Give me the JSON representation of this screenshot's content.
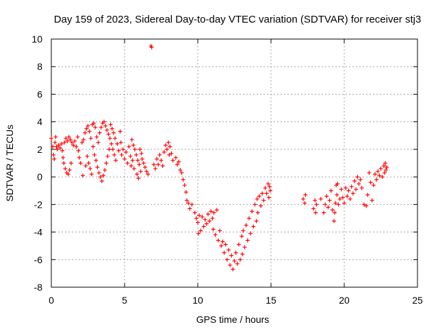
{
  "chart_data": {
    "type": "scatter",
    "title": "Day 159 of 2023, Sidereal Day-to-day VTEC variation (SDTVAR) for receiver stj3",
    "xlabel": "GPS time / hours",
    "ylabel": "SDTVAR / TECUs",
    "xlim": [
      0,
      25
    ],
    "ylim": [
      -8,
      10
    ],
    "xticks": [
      0,
      5,
      10,
      15,
      20,
      25
    ],
    "yticks": [
      -8,
      -6,
      -4,
      -2,
      0,
      2,
      4,
      6,
      8,
      10
    ],
    "grid": true,
    "marker": "+",
    "marker_color": "#ff0000",
    "series": [
      {
        "name": "SDTVAR",
        "points": [
          [
            0.0,
            2.8
          ],
          [
            0.1,
            2.2
          ],
          [
            0.15,
            1.6
          ],
          [
            0.2,
            1.3
          ],
          [
            0.25,
            2.5
          ],
          [
            0.3,
            2.9
          ],
          [
            0.35,
            2.2
          ],
          [
            0.4,
            2.0
          ],
          [
            0.5,
            2.3
          ],
          [
            0.6,
            2.1
          ],
          [
            0.7,
            2.4
          ],
          [
            0.75,
            1.9
          ],
          [
            0.8,
            1.4
          ],
          [
            0.85,
            1.0
          ],
          [
            0.9,
            2.5
          ],
          [
            0.95,
            0.6
          ],
          [
            1.0,
            2.8
          ],
          [
            1.05,
            0.3
          ],
          [
            1.1,
            2.6
          ],
          [
            1.15,
            0.2
          ],
          [
            1.2,
            2.9
          ],
          [
            1.25,
            0.5
          ],
          [
            1.3,
            2.7
          ],
          [
            1.35,
            1.0
          ],
          [
            1.4,
            2.5
          ],
          [
            1.5,
            2.3
          ],
          [
            1.6,
            2.6
          ],
          [
            1.7,
            2.2
          ],
          [
            1.8,
            2.9
          ],
          [
            1.85,
            1.9
          ],
          [
            1.9,
            1.4
          ],
          [
            2.0,
            1.0
          ],
          [
            2.1,
            2.5
          ],
          [
            2.15,
            0.1
          ],
          [
            2.2,
            2.7
          ],
          [
            2.3,
            3.2
          ],
          [
            2.35,
            0.8
          ],
          [
            2.4,
            3.5
          ],
          [
            2.45,
            1.5
          ],
          [
            2.5,
            3.7
          ],
          [
            2.55,
            1.0
          ],
          [
            2.6,
            3.3
          ],
          [
            2.65,
            0.6
          ],
          [
            2.7,
            2.8
          ],
          [
            2.75,
            0.2
          ],
          [
            2.8,
            3.8
          ],
          [
            2.85,
            2.2
          ],
          [
            2.9,
            3.9
          ],
          [
            2.95,
            1.6
          ],
          [
            3.0,
            3.6
          ],
          [
            3.05,
            1.2
          ],
          [
            3.1,
            2.9
          ],
          [
            3.15,
            0.7
          ],
          [
            3.2,
            2.5
          ],
          [
            3.25,
            0.3
          ],
          [
            3.3,
            3.2
          ],
          [
            3.35,
            0.0
          ],
          [
            3.4,
            3.6
          ],
          [
            3.45,
            -0.3
          ],
          [
            3.5,
            3.9
          ],
          [
            3.55,
            0.1
          ],
          [
            3.6,
            4.0
          ],
          [
            3.65,
            0.5
          ],
          [
            3.7,
            3.7
          ],
          [
            3.75,
            1.0
          ],
          [
            3.8,
            3.4
          ],
          [
            3.85,
            1.5
          ],
          [
            3.9,
            3.1
          ],
          [
            3.95,
            2.0
          ],
          [
            4.0,
            2.8
          ],
          [
            4.05,
            3.8
          ],
          [
            4.1,
            2.4
          ],
          [
            4.15,
            3.5
          ],
          [
            4.2,
            2.0
          ],
          [
            4.25,
            3.2
          ],
          [
            4.3,
            1.6
          ],
          [
            4.35,
            2.8
          ],
          [
            4.4,
            1.2
          ],
          [
            4.5,
            2.4
          ],
          [
            4.6,
            1.9
          ],
          [
            4.7,
            3.3
          ],
          [
            4.75,
            2.5
          ],
          [
            4.8,
            1.6
          ],
          [
            4.9,
            2.0
          ],
          [
            5.0,
            1.3
          ],
          [
            5.1,
            1.8
          ],
          [
            5.2,
            1.0
          ],
          [
            5.3,
            2.2
          ],
          [
            5.4,
            1.5
          ],
          [
            5.45,
            0.8
          ],
          [
            5.5,
            2.7
          ],
          [
            5.55,
            1.2
          ],
          [
            5.6,
            2.3
          ],
          [
            5.65,
            0.6
          ],
          [
            5.7,
            2.0
          ],
          [
            5.8,
            1.6
          ],
          [
            5.85,
            0.2
          ],
          [
            5.9,
            1.2
          ],
          [
            5.95,
            -0.1
          ],
          [
            6.0,
            0.9
          ],
          [
            6.05,
            2.0
          ],
          [
            6.1,
            0.4
          ],
          [
            6.15,
            1.7
          ],
          [
            6.2,
            1.3
          ],
          [
            6.3,
            1.0
          ],
          [
            6.4,
            0.7
          ],
          [
            6.5,
            0.4
          ],
          [
            6.6,
            0.2
          ],
          [
            6.8,
            9.5
          ],
          [
            6.85,
            9.4
          ],
          [
            7.0,
            0.9
          ],
          [
            7.1,
            0.6
          ],
          [
            7.2,
            1.3
          ],
          [
            7.3,
            0.9
          ],
          [
            7.4,
            1.6
          ],
          [
            7.5,
            1.2
          ],
          [
            7.6,
            0.8
          ],
          [
            7.7,
            1.8
          ],
          [
            7.8,
            2.3
          ],
          [
            7.9,
            2.0
          ],
          [
            8.0,
            2.5
          ],
          [
            8.05,
            1.6
          ],
          [
            8.1,
            2.2
          ],
          [
            8.2,
            1.7
          ],
          [
            8.3,
            1.2
          ],
          [
            8.5,
            1.4
          ],
          [
            8.6,
            0.9
          ],
          [
            8.7,
            1.1
          ],
          [
            8.8,
            0.5
          ],
          [
            8.9,
            0.3
          ],
          [
            9.0,
            -0.2
          ],
          [
            9.1,
            -0.6
          ],
          [
            9.2,
            -1.1
          ],
          [
            9.25,
            -1.7
          ],
          [
            9.35,
            -1.9
          ],
          [
            9.45,
            -2.3
          ],
          [
            9.6,
            -2.0
          ],
          [
            9.8,
            -2.6
          ],
          [
            9.9,
            -3.0
          ],
          [
            10.0,
            -3.3
          ],
          [
            10.05,
            -4.1
          ],
          [
            10.1,
            -2.8
          ],
          [
            10.2,
            -3.9
          ],
          [
            10.3,
            -2.9
          ],
          [
            10.4,
            -3.6
          ],
          [
            10.5,
            -3.1
          ],
          [
            10.6,
            -3.4
          ],
          [
            10.7,
            -2.7
          ],
          [
            10.8,
            -3.2
          ],
          [
            10.9,
            -2.5
          ],
          [
            11.0,
            -3.0
          ],
          [
            11.05,
            -3.8
          ],
          [
            11.1,
            -2.6
          ],
          [
            11.2,
            -4.2
          ],
          [
            11.3,
            -2.4
          ],
          [
            11.4,
            -4.6
          ],
          [
            11.5,
            -3.9
          ],
          [
            11.6,
            -5.0
          ],
          [
            11.7,
            -4.7
          ],
          [
            11.8,
            -5.5
          ],
          [
            11.9,
            -4.9
          ],
          [
            12.0,
            -6.0
          ],
          [
            12.1,
            -5.3
          ],
          [
            12.2,
            -6.4
          ],
          [
            12.3,
            -5.7
          ],
          [
            12.4,
            -6.7
          ],
          [
            12.5,
            -6.1
          ],
          [
            12.6,
            -5.5
          ],
          [
            12.7,
            -6.3
          ],
          [
            12.8,
            -4.9
          ],
          [
            12.9,
            -6.0
          ],
          [
            13.0,
            -4.3
          ],
          [
            13.05,
            -5.6
          ],
          [
            13.1,
            -3.9
          ],
          [
            13.2,
            -5.1
          ],
          [
            13.3,
            -3.5
          ],
          [
            13.4,
            -4.6
          ],
          [
            13.5,
            -3.0
          ],
          [
            13.6,
            -4.1
          ],
          [
            13.7,
            -2.5
          ],
          [
            13.8,
            -3.6
          ],
          [
            13.9,
            -2.0
          ],
          [
            14.0,
            -3.2
          ],
          [
            14.05,
            -1.6
          ],
          [
            14.1,
            -2.6
          ],
          [
            14.2,
            -1.4
          ],
          [
            14.3,
            -2.1
          ],
          [
            14.4,
            -1.2
          ],
          [
            14.5,
            -1.7
          ],
          [
            14.6,
            -0.8
          ],
          [
            14.7,
            -1.2
          ],
          [
            14.8,
            -0.5
          ],
          [
            14.85,
            -1.5
          ],
          [
            14.9,
            -0.7
          ],
          [
            14.95,
            -1.0
          ],
          [
            17.2,
            -1.6
          ],
          [
            17.3,
            -1.9
          ],
          [
            17.35,
            -1.3
          ],
          [
            17.9,
            -2.3
          ],
          [
            18.0,
            -1.7
          ],
          [
            18.05,
            -2.6
          ],
          [
            18.1,
            -2.0
          ],
          [
            18.4,
            -1.6
          ],
          [
            18.6,
            -2.6
          ],
          [
            18.7,
            -2.0
          ],
          [
            18.8,
            -1.4
          ],
          [
            18.9,
            -2.2
          ],
          [
            19.0,
            -1.7
          ],
          [
            19.1,
            -1.0
          ],
          [
            19.2,
            -2.4
          ],
          [
            19.3,
            -3.2
          ],
          [
            19.35,
            -2.6
          ],
          [
            19.4,
            -1.9
          ],
          [
            19.45,
            -0.6
          ],
          [
            19.5,
            -1.3
          ],
          [
            19.55,
            -0.5
          ],
          [
            19.6,
            -2.0
          ],
          [
            19.7,
            -1.6
          ],
          [
            19.8,
            -0.9
          ],
          [
            19.9,
            -1.5
          ],
          [
            20.0,
            -1.9
          ],
          [
            20.1,
            -0.8
          ],
          [
            20.2,
            -1.4
          ],
          [
            20.3,
            -1.0
          ],
          [
            20.4,
            -1.6
          ],
          [
            20.5,
            -0.7
          ],
          [
            20.6,
            -1.2
          ],
          [
            20.7,
            -0.3
          ],
          [
            20.8,
            -0.9
          ],
          [
            20.9,
            0.0
          ],
          [
            21.0,
            -0.5
          ],
          [
            21.1,
            -0.2
          ],
          [
            21.2,
            -0.8
          ],
          [
            21.35,
            -2.0
          ],
          [
            21.5,
            -2.1
          ],
          [
            21.6,
            -1.3
          ],
          [
            21.7,
            0.3
          ],
          [
            21.8,
            -0.4
          ],
          [
            21.9,
            -1.7
          ],
          [
            22.0,
            -0.6
          ],
          [
            22.1,
            0.2
          ],
          [
            22.2,
            -0.2
          ],
          [
            22.3,
            0.4
          ],
          [
            22.4,
            0.1
          ],
          [
            22.5,
            0.6
          ],
          [
            22.6,
            0.0
          ],
          [
            22.7,
            0.8
          ],
          [
            22.75,
            0.3
          ],
          [
            22.8,
            1.0
          ],
          [
            22.85,
            0.5
          ],
          [
            22.9,
            0.7
          ]
        ]
      }
    ]
  }
}
